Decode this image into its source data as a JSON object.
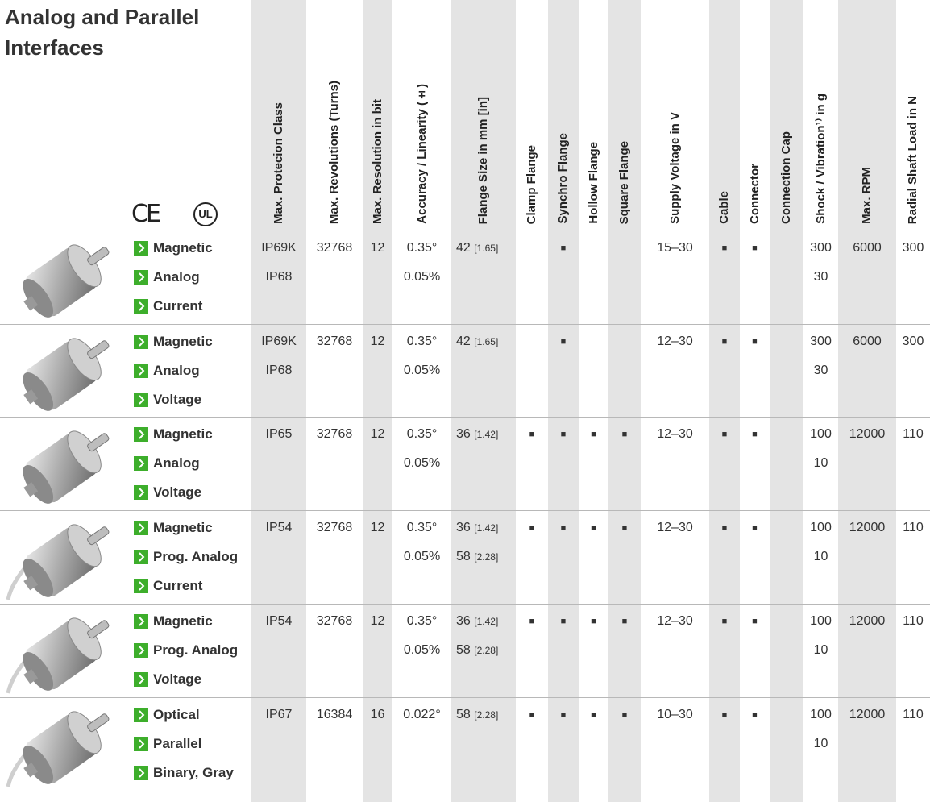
{
  "title": "Analog and Parallel Interfaces",
  "logos": {
    "ce": "CE",
    "ul": "UL"
  },
  "columns": [
    "Max. Protecion Class",
    "Max. Revolutions (Turns)",
    "Max. Resolution in bit",
    "Accuracy / Linearity (±)",
    "Flange Size in mm [in]",
    "Clamp Flange",
    "Synchro Flange",
    "Hollow Flange",
    "Square Flange",
    "Supply Voltage in V",
    "Cable",
    "Connector",
    "Connection Cap",
    "Shock / Vibration¹⁾ in g",
    "Max. RPM",
    "Radial Shaft Load in N"
  ],
  "rows": [
    {
      "labels": [
        "Magnetic",
        "Analog",
        "Current"
      ],
      "cells": [
        [
          "IP69K",
          "IP68"
        ],
        [
          "32768"
        ],
        [
          "12"
        ],
        [
          "0.35°",
          "0.05%"
        ],
        [
          {
            "mm": "42",
            "in": "[1.65]"
          }
        ],
        [],
        [
          "■"
        ],
        [],
        [],
        [
          "15–30"
        ],
        [
          "■"
        ],
        [
          "■"
        ],
        [],
        [
          "300",
          "30"
        ],
        [
          "6000"
        ],
        [
          "300"
        ]
      ]
    },
    {
      "labels": [
        "Magnetic",
        "Analog",
        "Voltage"
      ],
      "cells": [
        [
          "IP69K",
          "IP68"
        ],
        [
          "32768"
        ],
        [
          "12"
        ],
        [
          "0.35°",
          "0.05%"
        ],
        [
          {
            "mm": "42",
            "in": "[1.65]"
          }
        ],
        [],
        [
          "■"
        ],
        [],
        [],
        [
          "12–30"
        ],
        [
          "■"
        ],
        [
          "■"
        ],
        [],
        [
          "300",
          "30"
        ],
        [
          "6000"
        ],
        [
          "300"
        ]
      ]
    },
    {
      "labels": [
        "Magnetic",
        "Analog",
        "Voltage"
      ],
      "cells": [
        [
          "IP65"
        ],
        [
          "32768"
        ],
        [
          "12"
        ],
        [
          "0.35°",
          "0.05%"
        ],
        [
          {
            "mm": "36",
            "in": "[1.42]"
          }
        ],
        [
          "■"
        ],
        [
          "■"
        ],
        [
          "■"
        ],
        [
          "■"
        ],
        [
          "12–30"
        ],
        [
          "■"
        ],
        [
          "■"
        ],
        [],
        [
          "100",
          "10"
        ],
        [
          "12000"
        ],
        [
          "110"
        ]
      ]
    },
    {
      "labels": [
        "Magnetic",
        "Prog. Analog",
        "Current"
      ],
      "cells": [
        [
          "IP54"
        ],
        [
          "32768"
        ],
        [
          "12"
        ],
        [
          "0.35°",
          "0.05%"
        ],
        [
          {
            "mm": "36",
            "in": "[1.42]"
          },
          {
            "mm": "58",
            "in": "[2.28]"
          }
        ],
        [
          "■"
        ],
        [
          "■"
        ],
        [
          "■"
        ],
        [
          "■"
        ],
        [
          "12–30"
        ],
        [
          "■"
        ],
        [
          "■"
        ],
        [],
        [
          "100",
          "10"
        ],
        [
          "12000"
        ],
        [
          "110"
        ]
      ]
    },
    {
      "labels": [
        "Magnetic",
        "Prog. Analog",
        "Voltage"
      ],
      "cells": [
        [
          "IP54"
        ],
        [
          "32768"
        ],
        [
          "12"
        ],
        [
          "0.35°",
          "0.05%"
        ],
        [
          {
            "mm": "36",
            "in": "[1.42]"
          },
          {
            "mm": "58",
            "in": "[2.28]"
          }
        ],
        [
          "■"
        ],
        [
          "■"
        ],
        [
          "■"
        ],
        [
          "■"
        ],
        [
          "12–30"
        ],
        [
          "■"
        ],
        [
          "■"
        ],
        [],
        [
          "100",
          "10"
        ],
        [
          "12000"
        ],
        [
          "110"
        ]
      ]
    },
    {
      "labels": [
        "Optical",
        "Parallel",
        "Binary, Gray"
      ],
      "cells": [
        [
          "IP67"
        ],
        [
          "16384"
        ],
        [
          "16"
        ],
        [
          "0.022°"
        ],
        [
          {
            "mm": "58",
            "in": "[2.28]"
          }
        ],
        [
          "■"
        ],
        [
          "■"
        ],
        [
          "■"
        ],
        [
          "■"
        ],
        [
          "10–30"
        ],
        [
          "■"
        ],
        [
          "■"
        ],
        [],
        [
          "100",
          "10"
        ],
        [
          "12000"
        ],
        [
          "110"
        ]
      ]
    }
  ]
}
